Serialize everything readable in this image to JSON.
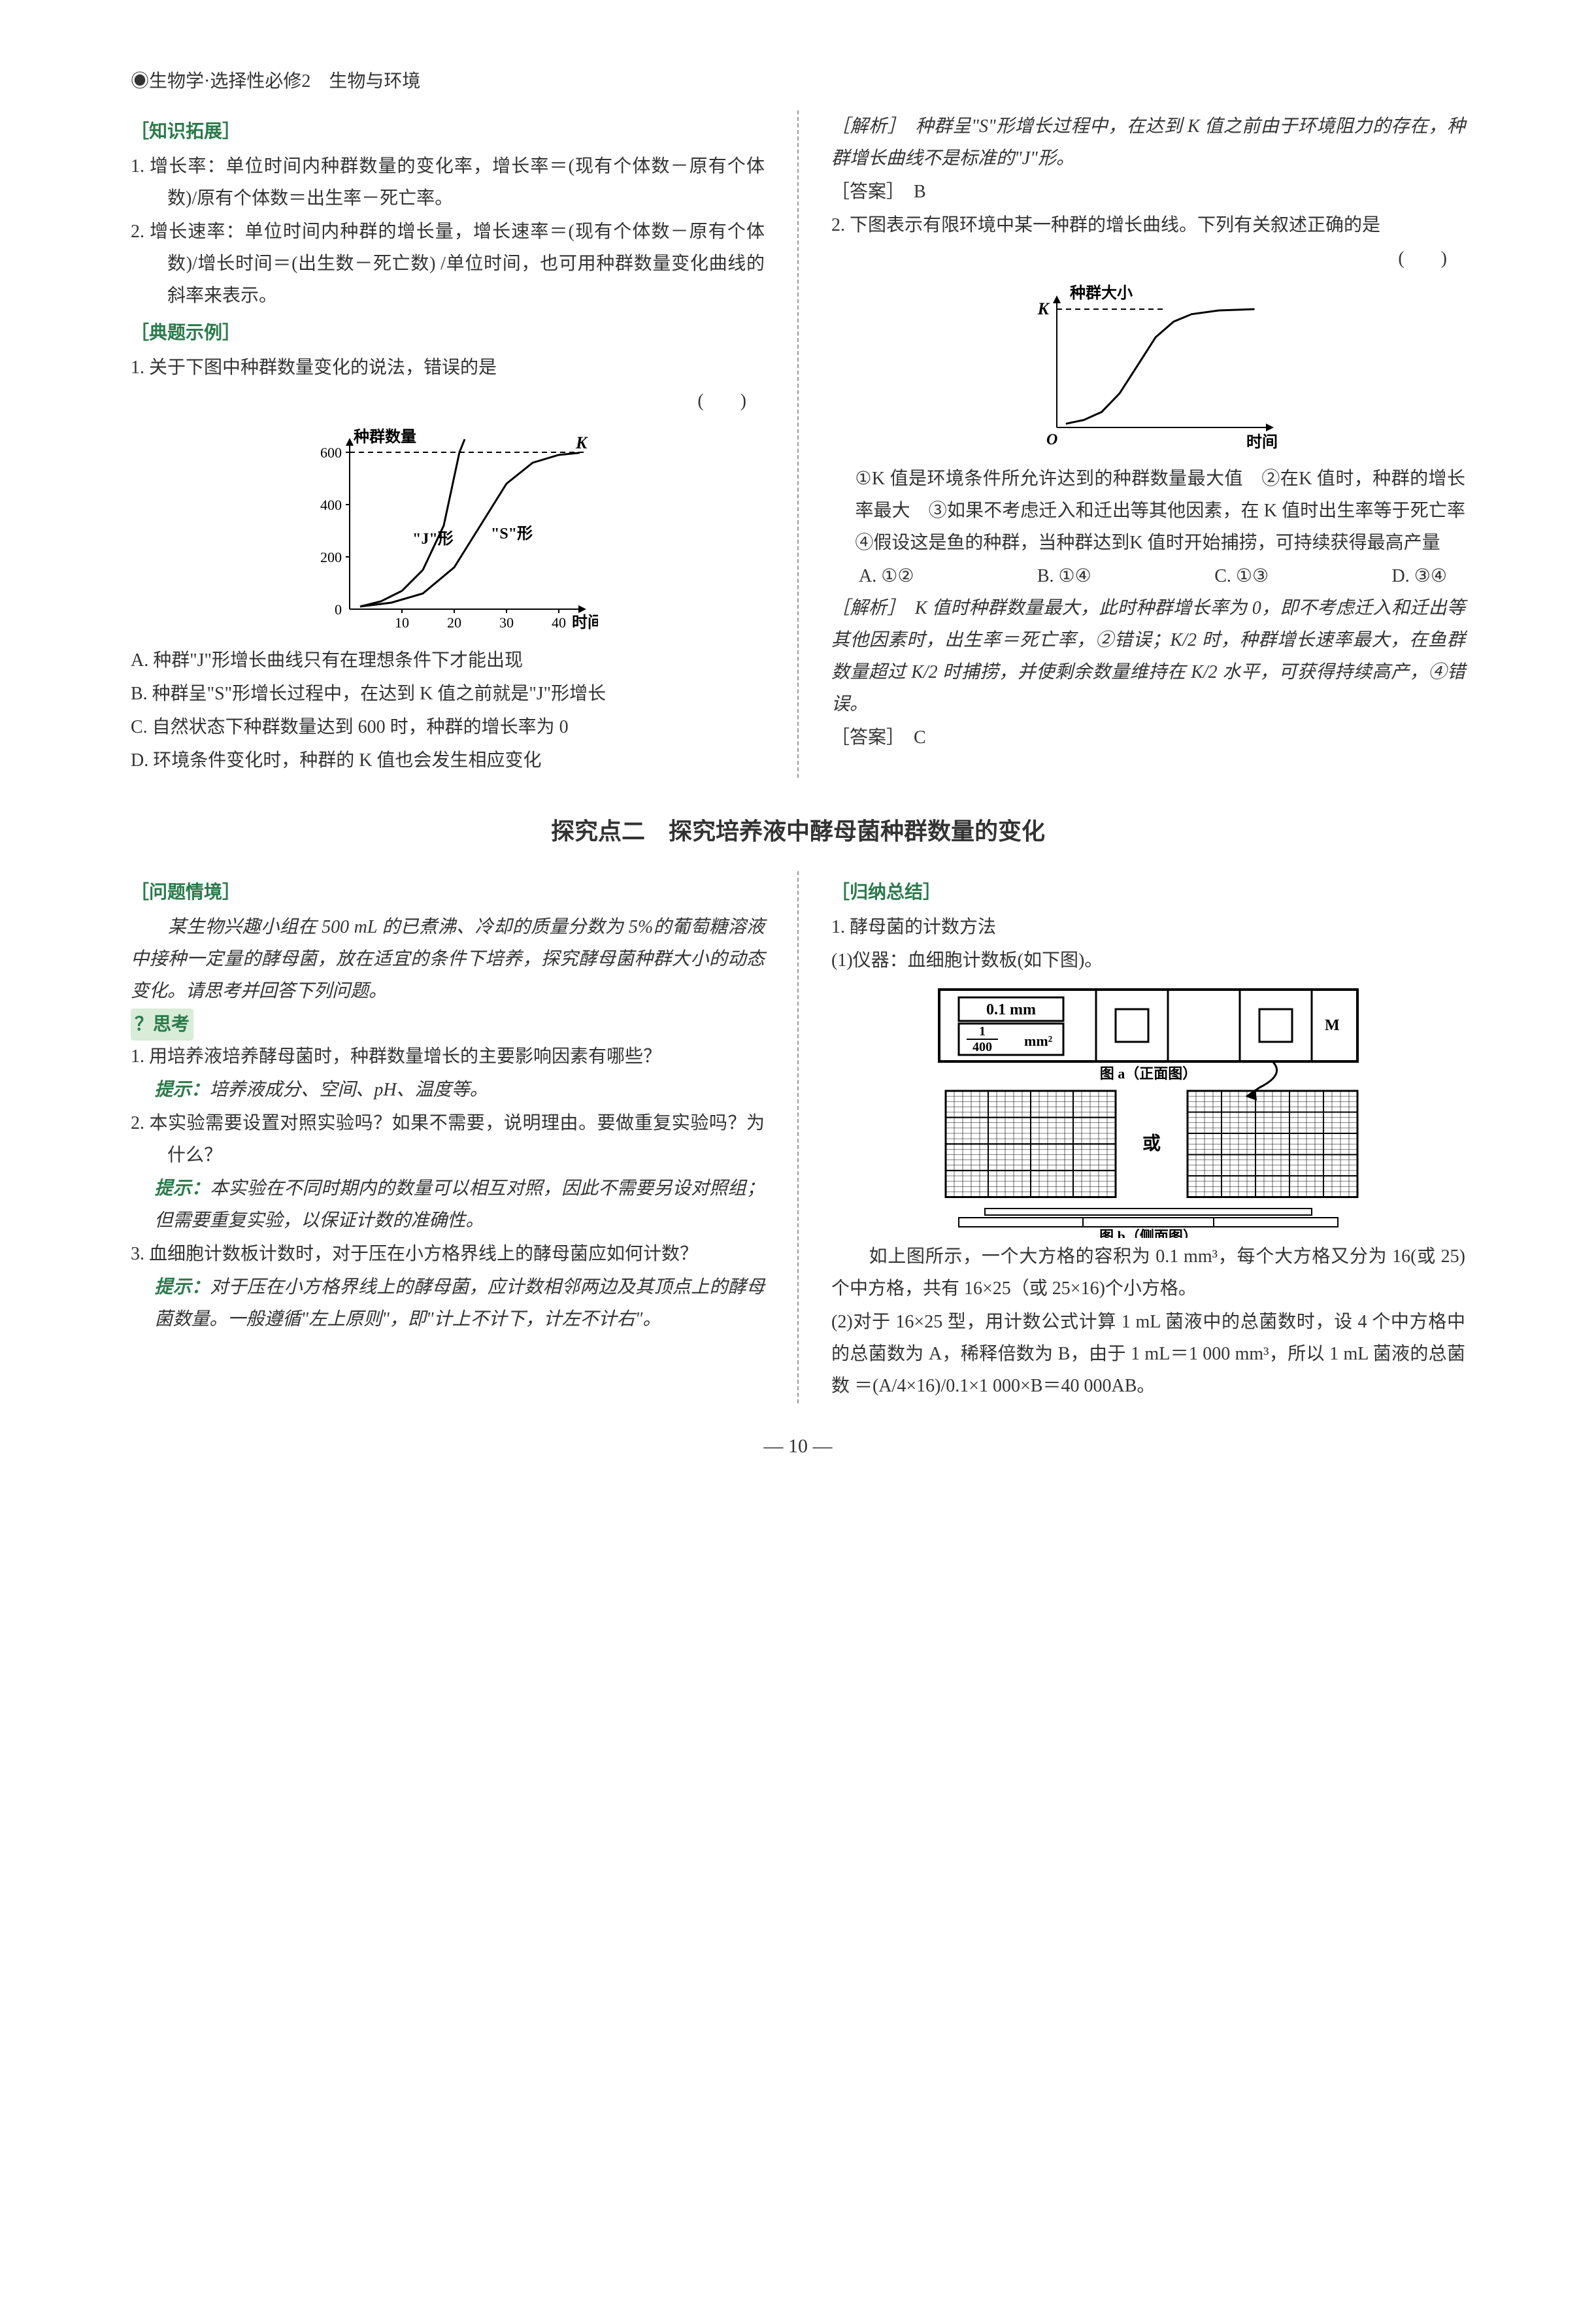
{
  "header": {
    "prefix": "◉生物学·选择性必修2",
    "suffix": "生物与环境"
  },
  "left": {
    "sec1_title": "［知识拓展］",
    "p1": "1. 增长率：单位时间内种群数量的变化率，增长率＝(现有个体数－原有个体数)/原有个体数＝出生率－死亡率。",
    "p2": "2. 增长速率：单位时间内种群的增长量，增长速率＝(现有个体数－原有个体数)/增长时间＝(出生数－死亡数) /单位时间，也可用种群数量变化曲线的斜率来表示。",
    "sec2_title": "［典题示例］",
    "q1_stem": "1. 关于下图中种群数量变化的说法，错误的是",
    "q1_paren": "(　　)",
    "chart1": {
      "ylabel": "种群数量",
      "xlabel": "时间",
      "k_label": "K",
      "j_label": "\"J\"形",
      "s_label": "\"S\"形",
      "yticks": [
        0,
        200,
        400,
        600
      ],
      "xticks": [
        0,
        10,
        20,
        30,
        40
      ],
      "ylim": [
        0,
        650
      ],
      "xlim": [
        0,
        45
      ],
      "k_value": 600,
      "j_points": [
        [
          2,
          10
        ],
        [
          6,
          30
        ],
        [
          10,
          70
        ],
        [
          14,
          150
        ],
        [
          18,
          320
        ],
        [
          21,
          600
        ],
        [
          22,
          700
        ]
      ],
      "s_points": [
        [
          2,
          10
        ],
        [
          8,
          25
        ],
        [
          14,
          60
        ],
        [
          20,
          160
        ],
        [
          25,
          320
        ],
        [
          30,
          480
        ],
        [
          35,
          560
        ],
        [
          40,
          590
        ],
        [
          44,
          598
        ]
      ],
      "line_color": "#000000",
      "axis_color": "#000000",
      "dash_color": "#000000",
      "background": "#ffffff"
    },
    "q1_a": "A. 种群\"J\"形增长曲线只有在理想条件下才能出现",
    "q1_b": "B. 种群呈\"S\"形增长过程中，在达到 K 值之前就是\"J\"形增长",
    "q1_c": "C. 自然状态下种群数量达到 600 时，种群的增长率为 0",
    "q1_d": "D. 环境条件变化时，种群的 K 值也会发生相应变化"
  },
  "right": {
    "expl1": "［解析］　种群呈\"S\"形增长过程中，在达到 K 值之前由于环境阻力的存在，种群增长曲线不是标准的\"J\"形。",
    "ans1": "［答案］　B",
    "q2_stem": "2. 下图表示有限环境中某一种群的增长曲线。下列有关叙述正确的是",
    "q2_paren": "(　　)",
    "chart2": {
      "ylabel": "种群大小",
      "xlabel": "时间",
      "k_label": "K",
      "origin_label": "O",
      "s_points": [
        [
          5,
          6
        ],
        [
          15,
          12
        ],
        [
          25,
          25
        ],
        [
          35,
          55
        ],
        [
          45,
          100
        ],
        [
          55,
          145
        ],
        [
          65,
          170
        ],
        [
          75,
          182
        ],
        [
          90,
          188
        ],
        [
          110,
          190
        ]
      ],
      "k_value": 190,
      "xlim": [
        0,
        120
      ],
      "ylim": [
        0,
        210
      ],
      "line_color": "#000000",
      "axis_color": "#000000"
    },
    "q2_items": "①K 值是环境条件所允许达到的种群数量最大值　②在K 值时，种群的增长率最大　③如果不考虑迁入和迁出等其他因素，在 K 值时出生率等于死亡率　④假设这是鱼的种群，当种群达到K 值时开始捕捞，可持续获得最高产量",
    "q2_optA": "A. ①②",
    "q2_optB": "B. ①④",
    "q2_optC": "C. ①③",
    "q2_optD": "D. ③④",
    "expl2": "［解析］　K 值时种群数量最大，此时种群增长率为 0，即不考虑迁入和迁出等其他因素时，出生率＝死亡率，②错误；K/2 时，种群增长速率最大，在鱼群数量超过 K/2 时捕捞，并使剩余数量维持在 K/2 水平，可获得持续高产，④错误。",
    "ans2": "［答案］　C"
  },
  "center_section_title": "探究点二　探究培养液中酵母菌种群数量的变化",
  "bl": {
    "sec_title": "［问题情境］",
    "scenario": "　　某生物兴趣小组在 500 mL 的已煮沸、冷却的质量分数为 5%的葡萄糖溶液中接种一定量的酵母菌，放在适宜的条件下培养，探究酵母菌种群大小的动态变化。请思考并回答下列问题。",
    "think_label": "？思考",
    "q1": "1. 用培养液培养酵母菌时，种群数量增长的主要影响因素有哪些？",
    "a1_prefix": "提示：",
    "a1": "培养液成分、空间、pH、温度等。",
    "q2": "2. 本实验需要设置对照实验吗？如果不需要，说明理由。要做重复实验吗？为什么？",
    "a2_prefix": "提示：",
    "a2": "本实验在不同时期内的数量可以相互对照，因此不需要另设对照组；但需要重复实验，以保证计数的准确性。",
    "q3": "3. 血细胞计数板计数时，对于压在小方格界线上的酵母菌应如何计数？",
    "a3_prefix": "提示：",
    "a3": "对于压在小方格界线上的酵母菌，应计数相邻两边及其顶点上的酵母菌数量。一般遵循\"左上原则\"，即\"计上不计下，计左不计右\"。"
  },
  "br": {
    "sec_title": "［归纳总结］",
    "h1": "1. 酵母菌的计数方法",
    "p1": "(1)仪器：血细胞计数板(如下图)。",
    "diagram": {
      "top_label1": "0.1 mm",
      "top_label2_num": "1",
      "top_label2_den": "400",
      "top_label2_unit": "mm²",
      "caption_a": "图 a（正面图）",
      "caption_b": "图 b（侧面图）",
      "or_label": "或",
      "border_color": "#000000",
      "fill_color": "#ffffff"
    },
    "p2": "　　如上图所示，一个大方格的容积为 0.1 mm³，每个大方格又分为 16(或 25)个中方格，共有 16×25（或 25×16)个小方格。",
    "p3": "(2)对于 16×25 型，用计数公式计算 1 mL 菌液中的总菌数时，设 4 个中方格中的总菌数为 A，稀释倍数为 B，由于 1 mL＝1 000 mm³，所以 1 mL 菌液的总菌数 ＝(A/4×16)/0.1×1 000×B＝40 000AB。"
  },
  "page_number": "10"
}
